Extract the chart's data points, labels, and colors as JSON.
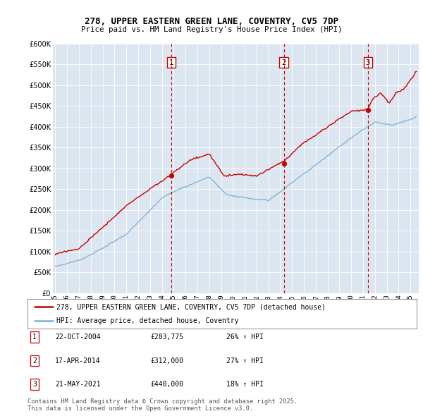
{
  "title_line1": "278, UPPER EASTERN GREEN LANE, COVENTRY, CV5 7DP",
  "title_line2": "Price paid vs. HM Land Registry's House Price Index (HPI)",
  "background_color": "#dce6f1",
  "plot_bg_color": "#dce6f1",
  "outer_bg_color": "#ffffff",
  "red_line_label": "278, UPPER EASTERN GREEN LANE, COVENTRY, CV5 7DP (detached house)",
  "blue_line_label": "HPI: Average price, detached house, Coventry",
  "transactions": [
    {
      "num": 1,
      "date": "22-OCT-2004",
      "price": "£283,775",
      "change": "26% ↑ HPI",
      "year": 2004.8
    },
    {
      "num": 2,
      "date": "17-APR-2014",
      "price": "£312,000",
      "change": "27% ↑ HPI",
      "year": 2014.3
    },
    {
      "num": 3,
      "date": "21-MAY-2021",
      "price": "£440,000",
      "change": "18% ↑ HPI",
      "year": 2021.4
    }
  ],
  "footer": "Contains HM Land Registry data © Crown copyright and database right 2025.\nThis data is licensed under the Open Government Licence v3.0.",
  "ylim": [
    0,
    600000
  ],
  "yticks": [
    0,
    50000,
    100000,
    150000,
    200000,
    250000,
    300000,
    350000,
    400000,
    450000,
    500000,
    550000,
    600000
  ],
  "xlim_start": 1994.8,
  "xlim_end": 2025.7,
  "red_color": "#cc0000",
  "blue_color": "#7aafd4",
  "dot_color": "#cc0000",
  "transaction_val1": 283775,
  "transaction_val2": 312000,
  "transaction_val3": 440000
}
